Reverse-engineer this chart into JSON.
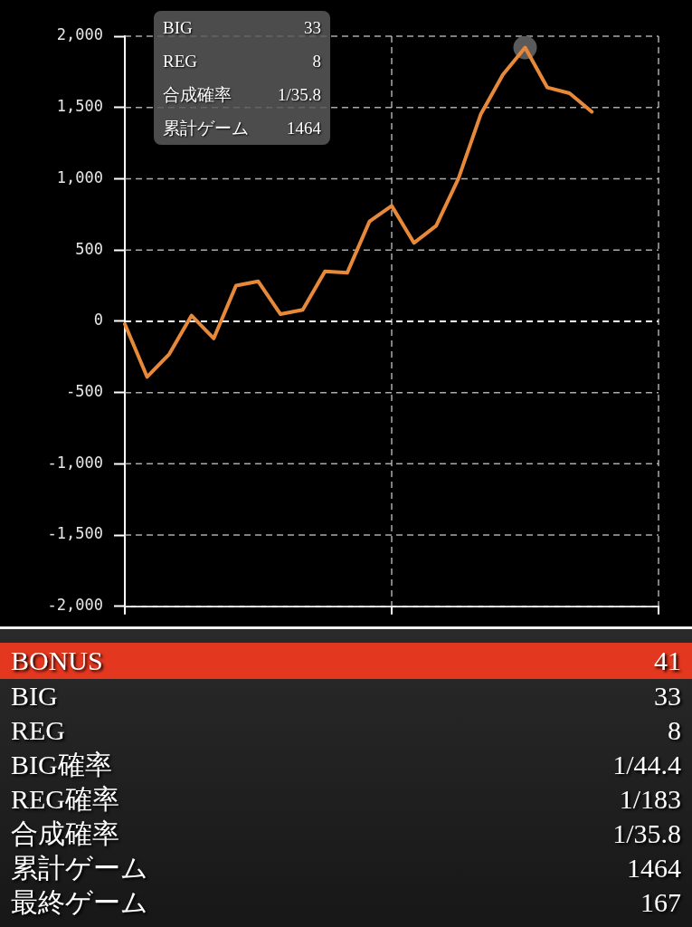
{
  "chart_data": {
    "type": "line",
    "categories": [
      null,
      null,
      null,
      null,
      null,
      null,
      null,
      null,
      null,
      null,
      null,
      null,
      null,
      null,
      null,
      null,
      null,
      null,
      null,
      null,
      null,
      null,
      null,
      null,
      null
    ],
    "series": [
      {
        "color": "#e8893a",
        "values": [
          -20,
          -390,
          -230,
          40,
          -120,
          250,
          280,
          50,
          80,
          350,
          340,
          700,
          810,
          550,
          670,
          1000,
          1450,
          1730,
          1920,
          1640,
          1600,
          1470,
          null,
          null,
          null
        ]
      },
      {
        "type": "scatter",
        "marker": "circle",
        "color": "#5a5a5a",
        "values": [
          null,
          null,
          null,
          null,
          null,
          null,
          null,
          null,
          null,
          null,
          null,
          null,
          null,
          null,
          null,
          null,
          null,
          null,
          1920,
          null,
          null,
          null,
          null,
          null,
          null
        ]
      }
    ],
    "ylim": [
      -2000,
      2000
    ],
    "yticks": [
      {
        "value": -2000,
        "label": "-2,000"
      },
      {
        "value": -1500,
        "label": "-1,500"
      },
      {
        "value": -1000,
        "label": "-1,000"
      },
      {
        "value": -500,
        "label": "-500"
      },
      0,
      500,
      {
        "value": 1000,
        "label": "1,000"
      },
      {
        "value": 1500,
        "label": "1,500"
      },
      {
        "value": 2000,
        "label": "2,000"
      }
    ],
    "grid": true,
    "tick_labels": "y",
    "ref_lines": [
      {
        "axis": "y",
        "value": 0,
        "color": "#ffffff",
        "line_style": "dashed"
      }
    ],
    "annotations": [
      "BIG 33",
      "REG 8",
      "合成確率 1/35.8",
      "累計ゲーム 1464",
      "BONUS 41",
      "BIG 33",
      "REG 8",
      "BIG確率 1/44.4",
      "REG確率 1/183",
      "合成確率 1/35.8",
      "累計ゲーム 1464",
      "最終ゲーム 167"
    ]
  }
}
